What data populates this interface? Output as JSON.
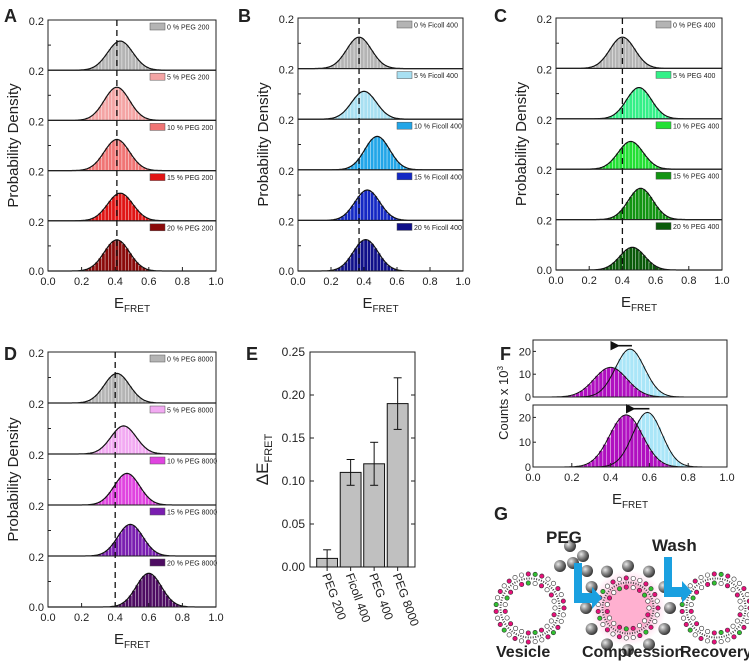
{
  "chart_data": [
    {
      "panel": "A",
      "type": "bar",
      "stacked_histograms": true,
      "xlabel": "E",
      "xlabel_sub": "FRET",
      "ylabel": "Probability Density",
      "xlim": [
        0,
        1
      ],
      "xticks": [
        "0.0",
        "0.2",
        "0.4",
        "0.6",
        "0.8",
        "1.0"
      ],
      "ytick_top": "0.2",
      "ytick_bottom": "0.0",
      "reference_line": 0.41,
      "series": [
        {
          "name": "0 % PEG 200",
          "peak": 0.43,
          "rel_height": 0.58,
          "color": "#b4b4b4"
        },
        {
          "name": "5 % PEG 200",
          "peak": 0.41,
          "rel_height": 0.66,
          "color": "#f4a4a4"
        },
        {
          "name": "10 % PEG 200",
          "peak": 0.41,
          "rel_height": 0.62,
          "color": "#f07474"
        },
        {
          "name": "15 % PEG 200",
          "peak": 0.43,
          "rel_height": 0.55,
          "color": "#e01414"
        },
        {
          "name": "20 % PEG 200",
          "peak": 0.41,
          "rel_height": 0.62,
          "color": "#8a0a0a"
        }
      ]
    },
    {
      "panel": "B",
      "type": "bar",
      "stacked_histograms": true,
      "xlabel": "E",
      "xlabel_sub": "FRET",
      "ylabel": "Probability Density",
      "xlim": [
        0,
        1
      ],
      "xticks": [
        "0.0",
        "0.2",
        "0.4",
        "0.6",
        "0.8",
        "1.0"
      ],
      "ytick_top": "0.2",
      "ytick_bottom": "0.0",
      "reference_line": 0.37,
      "series": [
        {
          "name": "0 % Ficoll 400",
          "peak": 0.37,
          "rel_height": 0.62,
          "color": "#b4b4b4"
        },
        {
          "name": "5 % Ficoll 400",
          "peak": 0.4,
          "rel_height": 0.55,
          "color": "#a8e0f2"
        },
        {
          "name": "10 % Ficoll 400",
          "peak": 0.48,
          "rel_height": 0.66,
          "color": "#22a6e8"
        },
        {
          "name": "15 % Ficoll 400",
          "peak": 0.42,
          "rel_height": 0.6,
          "color": "#1428c4"
        },
        {
          "name": "20 % Ficoll 400",
          "peak": 0.41,
          "rel_height": 0.62,
          "color": "#10108a"
        }
      ]
    },
    {
      "panel": "C",
      "type": "bar",
      "stacked_histograms": true,
      "xlabel": "E",
      "xlabel_sub": "FRET",
      "ylabel": "Probability Density",
      "xlim": [
        0,
        1
      ],
      "xticks": [
        "0.0",
        "0.2",
        "0.4",
        "0.6",
        "0.8",
        "1.0"
      ],
      "ytick_top": "0.2",
      "ytick_bottom": "0.0",
      "reference_line": 0.4,
      "series": [
        {
          "name": "0 % PEG 400",
          "peak": 0.4,
          "rel_height": 0.62,
          "color": "#b4b4b4"
        },
        {
          "name": "5 % PEG 400",
          "peak": 0.5,
          "rel_height": 0.62,
          "color": "#34f088"
        },
        {
          "name": "10 % PEG 400",
          "peak": 0.45,
          "rel_height": 0.55,
          "color": "#22e034"
        },
        {
          "name": "15 % PEG 400",
          "peak": 0.51,
          "rel_height": 0.62,
          "color": "#129412"
        },
        {
          "name": "20 % PEG 400",
          "peak": 0.46,
          "rel_height": 0.45,
          "color": "#0a5a0a"
        }
      ]
    },
    {
      "panel": "D",
      "type": "bar",
      "stacked_histograms": true,
      "xlabel": "E",
      "xlabel_sub": "FRET",
      "ylabel": "Probability Density",
      "xlim": [
        0,
        1
      ],
      "xticks": [
        "0.0",
        "0.2",
        "0.4",
        "0.6",
        "0.8",
        "1.0"
      ],
      "ytick_top": "0.2",
      "ytick_bottom": "0.0",
      "reference_line": 0.4,
      "series": [
        {
          "name": "0 % PEG 8000",
          "peak": 0.41,
          "rel_height": 0.58,
          "color": "#b4b4b4"
        },
        {
          "name": "5 % PEG 8000",
          "peak": 0.45,
          "rel_height": 0.55,
          "color": "#f2aaf2"
        },
        {
          "name": "10 % PEG 8000",
          "peak": 0.47,
          "rel_height": 0.62,
          "color": "#e044e0"
        },
        {
          "name": "15 % PEG 8000",
          "peak": 0.49,
          "rel_height": 0.62,
          "color": "#7a1eb0"
        },
        {
          "name": "20 % PEG 8000",
          "peak": 0.6,
          "rel_height": 0.66,
          "color": "#4e0c62"
        }
      ]
    },
    {
      "panel": "E",
      "type": "bar",
      "ylabel": "ΔE",
      "ylabel_sub": "FRET",
      "ylim": [
        0,
        0.25
      ],
      "yticks": [
        "0.00",
        "0.05",
        "0.10",
        "0.15",
        "0.20",
        "0.25"
      ],
      "categories": [
        "PEG 200",
        "Ficoll 400",
        "PEG 400",
        "PEG 8000"
      ],
      "values": [
        0.01,
        0.11,
        0.12,
        0.19
      ],
      "errors": [
        0.01,
        0.015,
        0.025,
        0.03
      ],
      "color": "#c0c0c0"
    },
    {
      "panel": "F",
      "type": "bar",
      "stacked_histograms": true,
      "xlabel": "E",
      "xlabel_sub": "FRET",
      "ylabel": "Counts x 10",
      "ylabel_sup": "3",
      "xlim": [
        0,
        1
      ],
      "xticks": [
        "0.0",
        "0.2",
        "0.4",
        "0.6",
        "0.8",
        "1.0"
      ],
      "yticks": [
        "0",
        "10",
        "20"
      ],
      "ylim": [
        0,
        25
      ],
      "panels": [
        {
          "series": [
            {
              "peak": 0.5,
              "height": 21,
              "color": "#aae6f8"
            },
            {
              "peak": 0.4,
              "height": 13,
              "color": "#b010c0"
            }
          ]
        },
        {
          "series": [
            {
              "peak": 0.59,
              "height": 22,
              "color": "#aae6f8"
            },
            {
              "peak": 0.48,
              "height": 21,
              "color": "#b010c0"
            }
          ]
        }
      ]
    }
  ],
  "panel_labels": [
    "A",
    "B",
    "C",
    "D",
    "E",
    "F",
    "G"
  ],
  "schematic": {
    "peg_label": "PEG",
    "wash_label": "Wash",
    "vesicle_label": "Vesicle",
    "compression_label": "Compression",
    "recovery_label": "Recovery",
    "colors": {
      "lipid_pink": "#e8107a",
      "lipid_green": "#30c030",
      "arrow": "#1aa0e0",
      "peg_ball": "#6a6a6a"
    }
  }
}
